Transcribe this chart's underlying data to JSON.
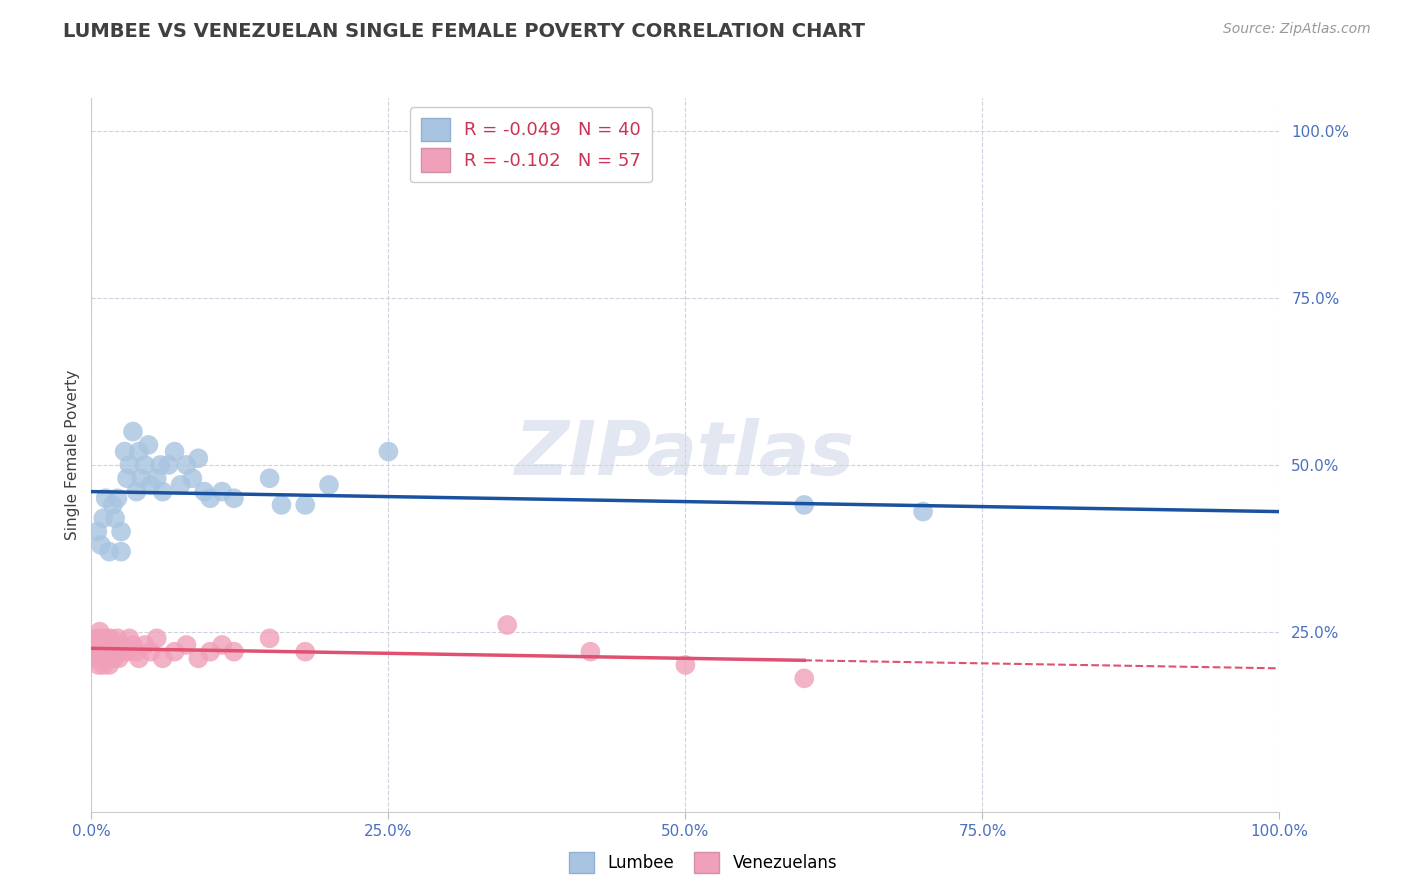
{
  "title": "LUMBEE VS VENEZUELAN SINGLE FEMALE POVERTY CORRELATION CHART",
  "source": "Source: ZipAtlas.com",
  "ylabel": "Single Female Poverty",
  "watermark": "ZIPatlas",
  "lumbee": {
    "label": "Lumbee",
    "R": -0.049,
    "N": 40,
    "color": "#a8c4e0",
    "line_color": "#1a52a0",
    "x": [
      0.005,
      0.008,
      0.01,
      0.012,
      0.015,
      0.018,
      0.02,
      0.022,
      0.025,
      0.025,
      0.028,
      0.03,
      0.032,
      0.035,
      0.038,
      0.04,
      0.042,
      0.045,
      0.048,
      0.05,
      0.055,
      0.058,
      0.06,
      0.065,
      0.07,
      0.075,
      0.08,
      0.085,
      0.09,
      0.095,
      0.1,
      0.11,
      0.12,
      0.15,
      0.16,
      0.18,
      0.2,
      0.25,
      0.6,
      0.7
    ],
    "y": [
      0.4,
      0.38,
      0.42,
      0.45,
      0.37,
      0.44,
      0.42,
      0.45,
      0.4,
      0.37,
      0.52,
      0.48,
      0.5,
      0.55,
      0.46,
      0.52,
      0.48,
      0.5,
      0.53,
      0.47,
      0.48,
      0.5,
      0.46,
      0.5,
      0.52,
      0.47,
      0.5,
      0.48,
      0.51,
      0.46,
      0.45,
      0.46,
      0.45,
      0.48,
      0.44,
      0.44,
      0.47,
      0.52,
      0.44,
      0.43
    ]
  },
  "venezuelan": {
    "label": "Venezuelans",
    "R": -0.102,
    "N": 57,
    "color": "#f0a0b8",
    "line_color": "#e05070",
    "x": [
      0.002,
      0.003,
      0.004,
      0.005,
      0.005,
      0.006,
      0.006,
      0.007,
      0.007,
      0.008,
      0.008,
      0.009,
      0.009,
      0.01,
      0.01,
      0.011,
      0.011,
      0.012,
      0.012,
      0.013,
      0.013,
      0.014,
      0.014,
      0.015,
      0.015,
      0.016,
      0.016,
      0.017,
      0.018,
      0.019,
      0.02,
      0.021,
      0.022,
      0.023,
      0.025,
      0.027,
      0.03,
      0.032,
      0.035,
      0.038,
      0.04,
      0.045,
      0.05,
      0.055,
      0.06,
      0.07,
      0.08,
      0.09,
      0.1,
      0.11,
      0.12,
      0.15,
      0.18,
      0.35,
      0.42,
      0.5,
      0.6
    ],
    "y": [
      0.22,
      0.21,
      0.23,
      0.22,
      0.24,
      0.2,
      0.23,
      0.22,
      0.25,
      0.21,
      0.23,
      0.22,
      0.24,
      0.2,
      0.23,
      0.22,
      0.21,
      0.23,
      0.22,
      0.24,
      0.21,
      0.23,
      0.22,
      0.2,
      0.23,
      0.22,
      0.24,
      0.22,
      0.23,
      0.21,
      0.23,
      0.22,
      0.24,
      0.21,
      0.23,
      0.22,
      0.22,
      0.24,
      0.23,
      0.22,
      0.21,
      0.23,
      0.22,
      0.24,
      0.21,
      0.22,
      0.23,
      0.21,
      0.22,
      0.23,
      0.22,
      0.24,
      0.22,
      0.26,
      0.22,
      0.2,
      0.18
    ]
  },
  "xlim": [
    0.0,
    1.0
  ],
  "ylim": [
    -0.02,
    1.05
  ],
  "xticks": [
    0.0,
    0.25,
    0.5,
    0.75,
    1.0
  ],
  "xticklabels": [
    "0.0%",
    "25.0%",
    "50.0%",
    "75.0%",
    "100.0%"
  ],
  "yticks_right": [
    0.25,
    0.5,
    0.75,
    1.0
  ],
  "yticklabels_right": [
    "25.0%",
    "50.0%",
    "75.0%",
    "100.0%"
  ],
  "grid_color": "#d0d0e0",
  "background_color": "#ffffff",
  "title_color": "#404040",
  "tick_color": "#4a70c0",
  "lum_line_start": 0.46,
  "lum_line_end": 0.43,
  "ven_line_start": 0.225,
  "ven_line_end": 0.195
}
